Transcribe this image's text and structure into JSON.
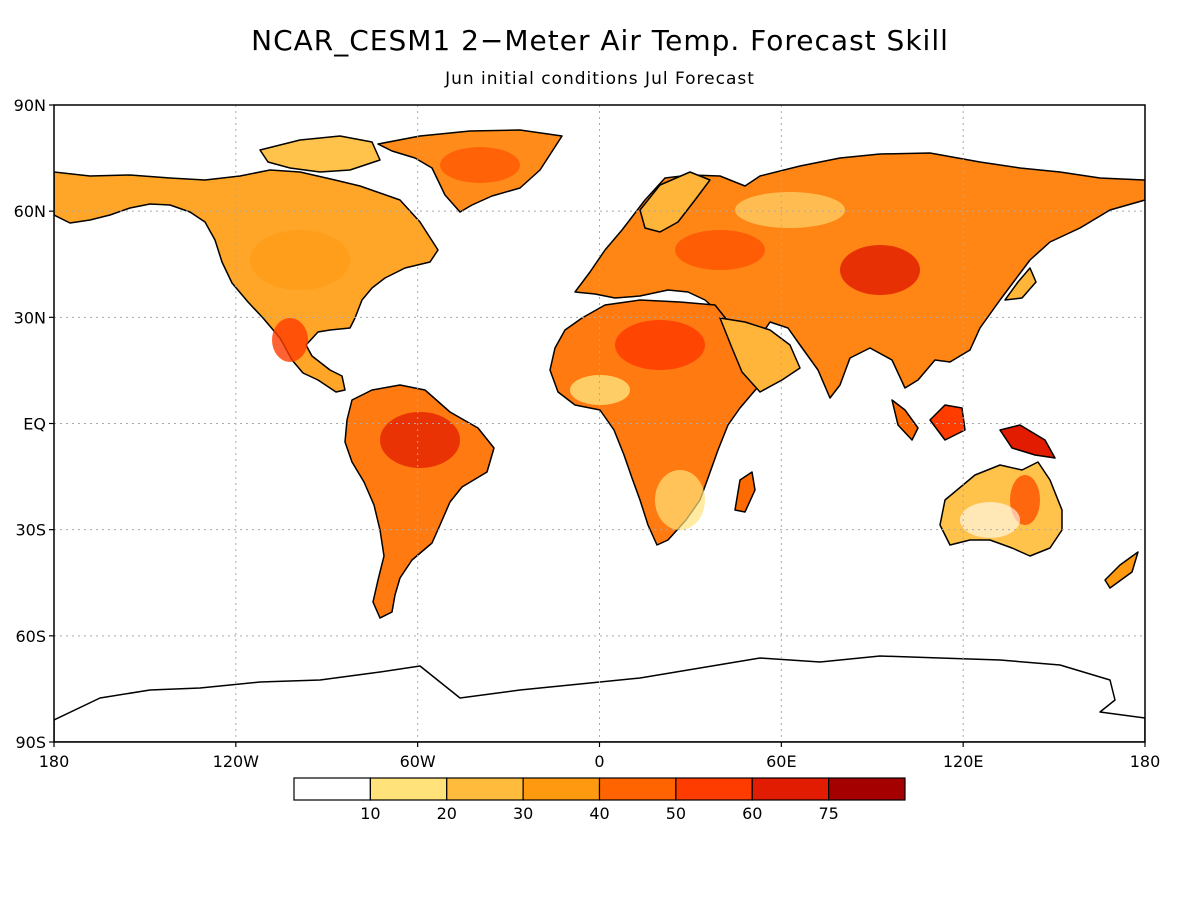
{
  "title": "NCAR_CESM1 2−Meter Air Temp. Forecast Skill",
  "subtitle": "Jun initial conditions  Jul Forecast",
  "map": {
    "lat_labels": [
      "90N",
      "60N",
      "30N",
      "EQ",
      "30S",
      "60S",
      "90S"
    ],
    "lon_labels": [
      "180",
      "120W",
      "60W",
      "0",
      "60E",
      "120E",
      "180"
    ],
    "gridlines": "dotted",
    "ocean_color": "#ffffff",
    "coastline_color": "#000000"
  },
  "legend": {
    "colors": [
      "#ffffff",
      "#ffe27a",
      "#ffbb3c",
      "#ff9a10",
      "#ff6400",
      "#ff3c00",
      "#e11c00",
      "#a50000"
    ],
    "labels": [
      "10",
      "20",
      "30",
      "40",
      "50",
      "60",
      "75"
    ]
  }
}
